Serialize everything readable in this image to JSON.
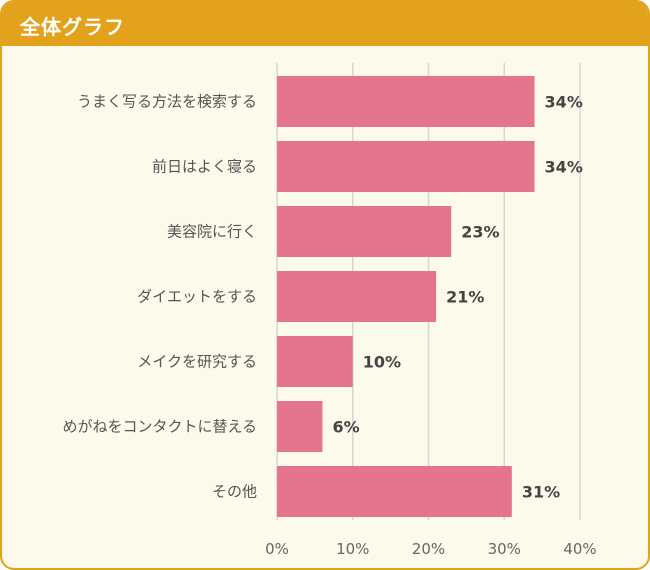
{
  "header": {
    "title": "全体グラフ"
  },
  "colors": {
    "header_bg": "#e3a21c",
    "panel_bg": "#fcfaea",
    "bar": "#e5758e",
    "grid": "#d9d6cc"
  },
  "chart_data": {
    "type": "bar",
    "orientation": "horizontal",
    "title": "",
    "xlabel": "",
    "ylabel": "",
    "categories": [
      "うまく写る方法を検索する",
      "前日はよく寝る",
      "美容院に行く",
      "ダイエットをする",
      "メイクを研究する",
      "めがねをコンタクトに替える",
      "その他"
    ],
    "values": [
      34,
      34,
      23,
      21,
      10,
      6,
      31
    ],
    "value_labels": [
      "34%",
      "34%",
      "23%",
      "21%",
      "10%",
      "6%",
      "31%"
    ],
    "xlim": [
      0,
      40
    ],
    "ticks": [
      0,
      10,
      20,
      30,
      40
    ],
    "tick_labels": [
      "0%",
      "10%",
      "20%",
      "30%",
      "40%"
    ],
    "grid": true
  }
}
